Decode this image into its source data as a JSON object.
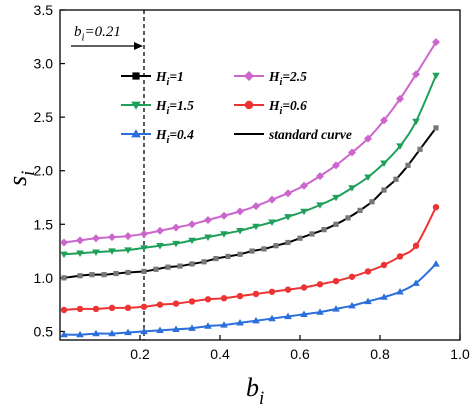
{
  "chart_data": {
    "type": "line",
    "xlabel": "b",
    "xlabel_sub": "i",
    "ylabel": "s",
    "ylabel_sub": "i",
    "xlim": [
      0.0,
      1.0
    ],
    "ylim": [
      0.42,
      3.5
    ],
    "xticks": [
      0.2,
      0.4,
      0.6,
      0.8,
      1.0
    ],
    "xtick_labels": [
      "0.2",
      "0.4",
      "0.6",
      "0.8",
      "1.0"
    ],
    "yticks": [
      0.5,
      1.0,
      1.5,
      2.0,
      2.5,
      3.0,
      3.5
    ],
    "ytick_labels": [
      "0.5",
      "1.0",
      "1.5",
      "2.0",
      "2.5",
      "3.0",
      "3.5"
    ],
    "grid": false,
    "legend_position": "upper-left-center",
    "reference_line": {
      "x": 0.21,
      "style": "dashed",
      "label": "b",
      "label_sub": "i",
      "label_value": "=0.21"
    },
    "series": [
      {
        "name_main": "H",
        "name_sub": "i",
        "name_rest": "=1",
        "color": "#000000",
        "marker": "square",
        "x": [
          0.01,
          0.05,
          0.08,
          0.11,
          0.14,
          0.17,
          0.21,
          0.24,
          0.27,
          0.3,
          0.33,
          0.36,
          0.39,
          0.42,
          0.45,
          0.48,
          0.51,
          0.54,
          0.57,
          0.6,
          0.63,
          0.66,
          0.69,
          0.72,
          0.75,
          0.78,
          0.81,
          0.84,
          0.87,
          0.9,
          0.94
        ],
        "y": [
          1.0,
          1.02,
          1.03,
          1.03,
          1.04,
          1.05,
          1.06,
          1.08,
          1.1,
          1.11,
          1.13,
          1.15,
          1.18,
          1.2,
          1.22,
          1.25,
          1.27,
          1.3,
          1.33,
          1.37,
          1.41,
          1.45,
          1.5,
          1.56,
          1.63,
          1.71,
          1.82,
          1.92,
          2.05,
          2.2,
          2.4
        ]
      },
      {
        "name_main": "H",
        "name_sub": "i",
        "name_rest": "=2.5",
        "color": "#cc66cc",
        "marker": "diamond",
        "x": [
          0.01,
          0.05,
          0.09,
          0.13,
          0.17,
          0.21,
          0.25,
          0.29,
          0.33,
          0.37,
          0.41,
          0.45,
          0.49,
          0.53,
          0.57,
          0.61,
          0.65,
          0.69,
          0.73,
          0.77,
          0.81,
          0.85,
          0.89,
          0.94
        ],
        "y": [
          1.33,
          1.35,
          1.37,
          1.38,
          1.39,
          1.41,
          1.44,
          1.47,
          1.5,
          1.54,
          1.58,
          1.62,
          1.67,
          1.73,
          1.79,
          1.86,
          1.95,
          2.05,
          2.17,
          2.3,
          2.47,
          2.67,
          2.9,
          3.2
        ]
      },
      {
        "name_main": "H",
        "name_sub": "i",
        "name_rest": "=1.5",
        "color": "#1ea05a",
        "marker": "triangle-down",
        "x": [
          0.01,
          0.05,
          0.09,
          0.13,
          0.17,
          0.21,
          0.25,
          0.29,
          0.33,
          0.37,
          0.41,
          0.45,
          0.49,
          0.53,
          0.57,
          0.61,
          0.65,
          0.69,
          0.73,
          0.77,
          0.81,
          0.85,
          0.89,
          0.94
        ],
        "y": [
          1.22,
          1.23,
          1.24,
          1.25,
          1.26,
          1.28,
          1.3,
          1.32,
          1.35,
          1.38,
          1.41,
          1.44,
          1.48,
          1.52,
          1.57,
          1.62,
          1.68,
          1.75,
          1.84,
          1.94,
          2.07,
          2.23,
          2.46,
          2.89
        ]
      },
      {
        "name_main": "H",
        "name_sub": "i",
        "name_rest": "=0.6",
        "color": "#ee3333",
        "marker": "circle",
        "x": [
          0.01,
          0.05,
          0.09,
          0.13,
          0.17,
          0.21,
          0.25,
          0.29,
          0.33,
          0.37,
          0.41,
          0.45,
          0.49,
          0.53,
          0.57,
          0.61,
          0.65,
          0.69,
          0.73,
          0.77,
          0.81,
          0.85,
          0.89,
          0.94
        ],
        "y": [
          0.7,
          0.71,
          0.71,
          0.72,
          0.72,
          0.73,
          0.75,
          0.76,
          0.78,
          0.8,
          0.81,
          0.83,
          0.85,
          0.87,
          0.89,
          0.91,
          0.94,
          0.97,
          1.01,
          1.06,
          1.12,
          1.2,
          1.3,
          1.66
        ]
      },
      {
        "name_main": "H",
        "name_sub": "i",
        "name_rest": "=0.4",
        "color": "#2a6fdb",
        "marker": "triangle-up",
        "x": [
          0.01,
          0.05,
          0.09,
          0.13,
          0.17,
          0.21,
          0.25,
          0.29,
          0.33,
          0.37,
          0.41,
          0.45,
          0.49,
          0.53,
          0.57,
          0.61,
          0.65,
          0.69,
          0.73,
          0.77,
          0.81,
          0.85,
          0.89,
          0.94
        ],
        "y": [
          0.47,
          0.47,
          0.48,
          0.48,
          0.49,
          0.5,
          0.51,
          0.52,
          0.53,
          0.55,
          0.56,
          0.58,
          0.6,
          0.62,
          0.64,
          0.66,
          0.68,
          0.71,
          0.74,
          0.78,
          0.82,
          0.87,
          0.95,
          1.13
        ]
      }
    ],
    "legend_extra": {
      "name": "standard curve",
      "color": "#000000",
      "marker": "none"
    }
  }
}
